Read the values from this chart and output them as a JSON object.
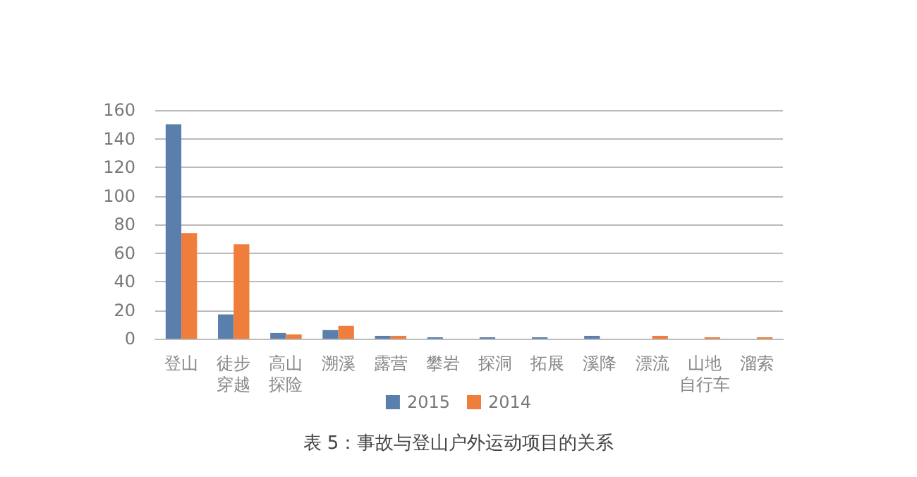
{
  "chart_data": {
    "type": "bar",
    "title": "表 5：事故与登山户外运动项目的关系",
    "categories": [
      "登山",
      "徒步穿越",
      "高山探险",
      "溯溪",
      "露营",
      "攀岩",
      "探洞",
      "拓展",
      "溪降",
      "漂流",
      "山地自行车",
      "溜索"
    ],
    "series": [
      {
        "name": "2015",
        "color": "#5b7fad",
        "values": [
          150,
          17,
          4,
          6,
          2,
          1,
          1,
          1,
          2,
          0,
          0,
          0
        ]
      },
      {
        "name": "2014",
        "color": "#ef7d3c",
        "values": [
          74,
          66,
          3,
          9,
          2,
          0,
          0,
          0,
          0,
          2,
          1,
          1
        ]
      }
    ],
    "ylim": [
      0,
      160
    ],
    "yticks": [
      0,
      20,
      40,
      60,
      80,
      100,
      120,
      140,
      160
    ],
    "grid": "y",
    "legend": "bottom"
  }
}
